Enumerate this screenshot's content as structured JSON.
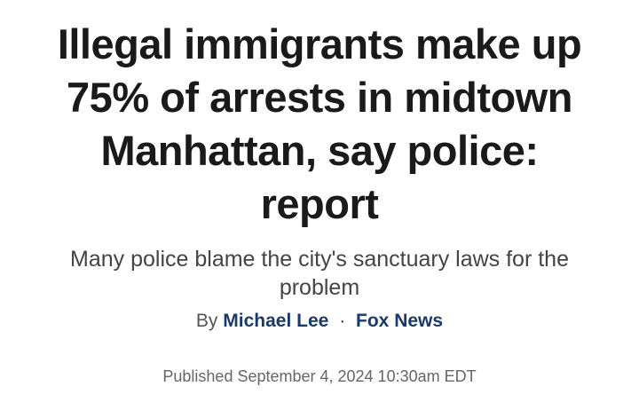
{
  "headline": "Illegal immigrants make up 75% of arrests in midtown Manhattan, say police: report",
  "subheadline": "Many police blame the city's sanctuary laws for the problem",
  "byline": {
    "prefix": "By",
    "author": "Michael Lee",
    "separator": "·",
    "source": "Fox News"
  },
  "published": "Published September 4, 2024 10:30am EDT"
}
